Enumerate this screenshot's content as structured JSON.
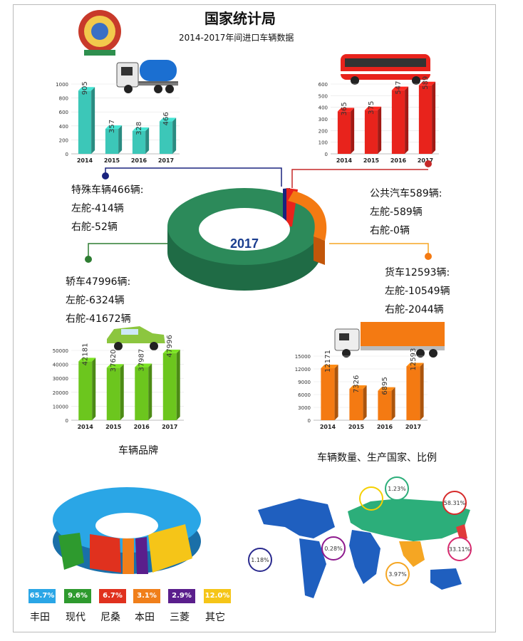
{
  "header": {
    "title": "国家统计局",
    "subtitle": "2014-2017年间进口车辆数据"
  },
  "center": {
    "year_label": "2017"
  },
  "groups": {
    "special": {
      "title": "特殊车辆466辆:",
      "left": "左舵-414辆",
      "right": "右舵-52辆"
    },
    "bus": {
      "title": "公共汽车589辆:",
      "left": "左舵-589辆",
      "right": "右舵-0辆"
    },
    "car": {
      "title": "轿车47996辆:",
      "left": "左舵-6324辆",
      "right": "右舵-41672辆"
    },
    "truck": {
      "title": "货车12593辆:",
      "left": "左舵-10549辆",
      "right": "右舵-2044辆"
    }
  },
  "captions": {
    "brand": "车辆品牌",
    "map": "车辆数量、生产国家、比例"
  },
  "colors": {
    "special": "#3cc7b8",
    "bus": "#e8231c",
    "car": "#6cc61e",
    "truck": "#f47a12",
    "ring": "#2c8a5a"
  },
  "chart_data": [
    {
      "type": "bar",
      "categories": [
        "2014",
        "2015",
        "2016",
        "2017"
      ],
      "values": [
        905,
        357,
        328,
        466
      ],
      "ylim": [
        0,
        1000
      ],
      "yticks": [
        0,
        200,
        400,
        600,
        800,
        1000
      ],
      "color": "#3cc7b8",
      "icon": "tanker-truck-icon"
    },
    {
      "type": "bar",
      "categories": [
        "2014",
        "2015",
        "2016",
        "2017"
      ],
      "values": [
        365,
        375,
        547,
        589
      ],
      "ylim": [
        0,
        600
      ],
      "yticks": [
        0,
        100,
        200,
        300,
        400,
        500,
        600
      ],
      "color": "#e8231c",
      "icon": "bus-icon"
    },
    {
      "type": "bar",
      "categories": [
        "2014",
        "2015",
        "2016",
        "2017"
      ],
      "values": [
        42181,
        37620,
        37987,
        47996
      ],
      "ylim": [
        0,
        50000
      ],
      "yticks": [
        0,
        10000,
        20000,
        30000,
        40000,
        50000
      ],
      "color": "#6cc61e",
      "icon": "taxi-car-icon"
    },
    {
      "type": "bar",
      "categories": [
        "2014",
        "2015",
        "2016",
        "2017"
      ],
      "values": [
        12171,
        7326,
        6895,
        12593
      ],
      "ylim": [
        0,
        15000
      ],
      "yticks": [
        0,
        3000,
        6000,
        9000,
        12000,
        15000
      ],
      "color": "#f47a12",
      "icon": "cargo-truck-icon"
    },
    {
      "type": "pie",
      "labels": [
        "丰田",
        "现代",
        "尼桑",
        "本田",
        "三菱",
        "其它"
      ],
      "values": [
        65.7,
        9.6,
        6.7,
        3.1,
        2.9,
        12.0
      ],
      "value_labels": [
        "65.7%",
        "9.6%",
        "6.7%",
        "3.1%",
        "2.9%",
        "12.0%"
      ],
      "colors": [
        "#2aa6e6",
        "#2e9a2e",
        "#e0311e",
        "#f07f1a",
        "#5a1e8c",
        "#f5c518"
      ]
    }
  ],
  "map": {
    "bubbles": [
      "1.23%",
      "58.31%",
      "0.28%",
      "33.11%",
      "1.18%",
      "3.97%"
    ]
  }
}
